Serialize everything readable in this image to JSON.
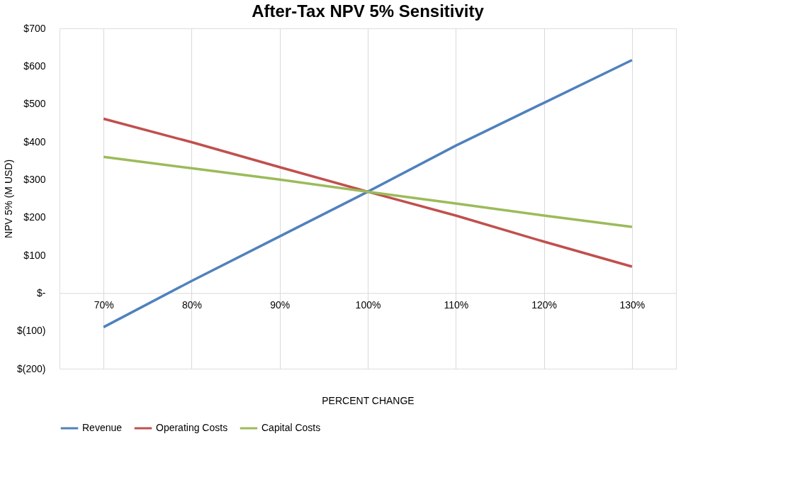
{
  "chart_data": {
    "type": "line",
    "title": "After-Tax NPV 5% Sensitivity",
    "xlabel": "PERCENT CHANGE",
    "ylabel": "NPV 5% (M USD)",
    "categories": [
      "70%",
      "80%",
      "90%",
      "100%",
      "110%",
      "120%",
      "130%"
    ],
    "series": [
      {
        "name": "Revenue",
        "color": "#4f81bd",
        "values": [
          -90,
          32,
          150,
          268,
          390,
          503,
          616
        ]
      },
      {
        "name": "Operating Costs",
        "color": "#c0504d",
        "values": [
          461,
          399,
          333,
          268,
          205,
          136,
          70
        ]
      },
      {
        "name": "Capital Costs",
        "color": "#9bbb59",
        "values": [
          360,
          330,
          300,
          268,
          237,
          205,
          175
        ]
      }
    ],
    "ylim": [
      -200,
      700
    ],
    "yticks": [
      {
        "value": -200,
        "label": "$(200)"
      },
      {
        "value": -100,
        "label": "$(100)"
      },
      {
        "value": 0,
        "label": "$-"
      },
      {
        "value": 100,
        "label": "$100"
      },
      {
        "value": 200,
        "label": "$200"
      },
      {
        "value": 300,
        "label": "$300"
      },
      {
        "value": 400,
        "label": "$400"
      },
      {
        "value": 500,
        "label": "$500"
      },
      {
        "value": 600,
        "label": "$600"
      },
      {
        "value": 700,
        "label": "$700"
      }
    ],
    "grid": "x",
    "legend": "bottom",
    "marker": "none",
    "line_style": "solid"
  }
}
